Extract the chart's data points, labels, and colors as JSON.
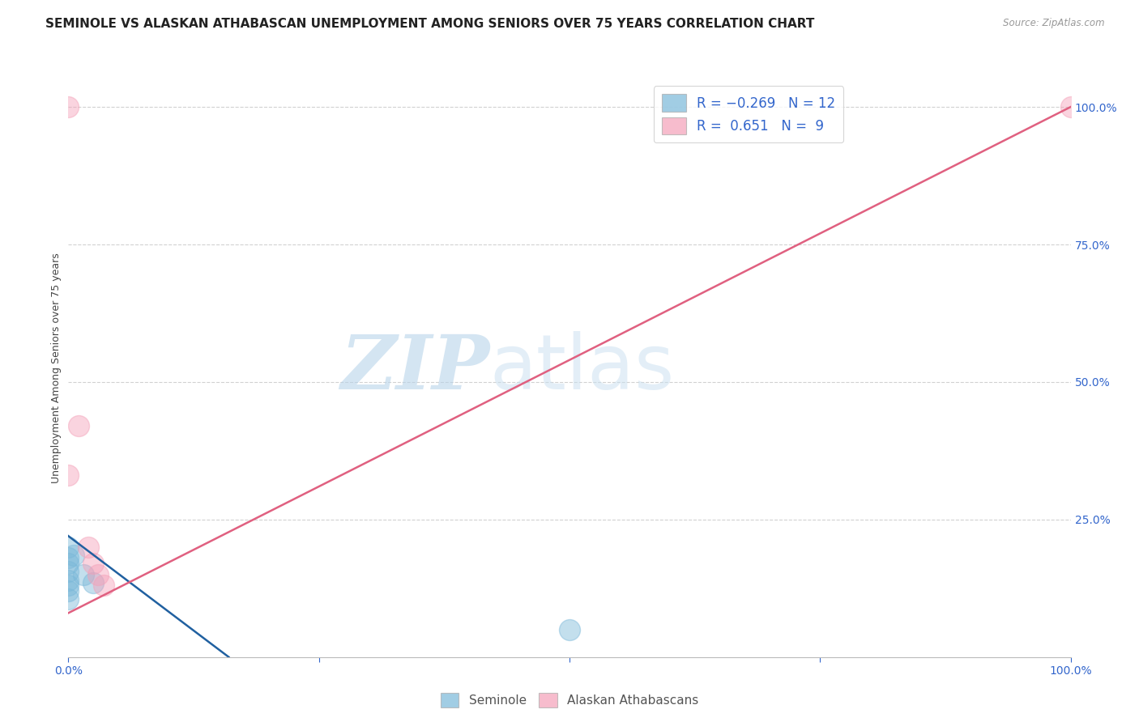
{
  "title": "SEMINOLE VS ALASKAN ATHABASCAN UNEMPLOYMENT AMONG SENIORS OVER 75 YEARS CORRELATION CHART",
  "source": "Source: ZipAtlas.com",
  "ylabel": "Unemployment Among Seniors over 75 years",
  "watermark_zip": "ZIP",
  "watermark_atlas": "atlas",
  "seminole_color": "#7ab8d9",
  "alaskan_color": "#f4a0b8",
  "seminole_line_color": "#2060a0",
  "alaskan_line_color": "#e06080",
  "seminole_points": [
    [
      0.0,
      20.0
    ],
    [
      0.0,
      18.0
    ],
    [
      0.0,
      17.0
    ],
    [
      0.0,
      15.5
    ],
    [
      0.0,
      14.0
    ],
    [
      0.0,
      13.0
    ],
    [
      0.0,
      12.0
    ],
    [
      0.0,
      10.5
    ],
    [
      0.5,
      18.5
    ],
    [
      1.5,
      15.0
    ],
    [
      2.5,
      13.5
    ],
    [
      50.0,
      5.0
    ]
  ],
  "alaskan_points": [
    [
      0.0,
      100.0
    ],
    [
      0.0,
      33.0
    ],
    [
      1.0,
      42.0
    ],
    [
      2.0,
      20.0
    ],
    [
      2.5,
      17.0
    ],
    [
      3.0,
      15.0
    ],
    [
      3.5,
      13.0
    ],
    [
      100.0,
      100.0
    ]
  ],
  "seminole_trend_x": [
    0.0,
    16.0
  ],
  "seminole_trend_y": [
    22.0,
    0.0
  ],
  "alaskan_trend_x": [
    0.0,
    100.0
  ],
  "alaskan_trend_y": [
    8.0,
    100.0
  ],
  "xlim": [
    0.0,
    100.0
  ],
  "ylim": [
    0.0,
    105.0
  ],
  "yticks": [
    25.0,
    50.0,
    75.0,
    100.0
  ],
  "ytick_labels": [
    "25.0%",
    "50.0%",
    "75.0%",
    "100.0%"
  ],
  "xtick_left_label": "0.0%",
  "xtick_right_label": "100.0%",
  "background_color": "#ffffff",
  "grid_color": "#cccccc",
  "title_fontsize": 11,
  "axis_fontsize": 10,
  "tick_color": "#3366cc",
  "legend_R_color": "#1a1a2e",
  "legend_N_color": "#3366cc"
}
